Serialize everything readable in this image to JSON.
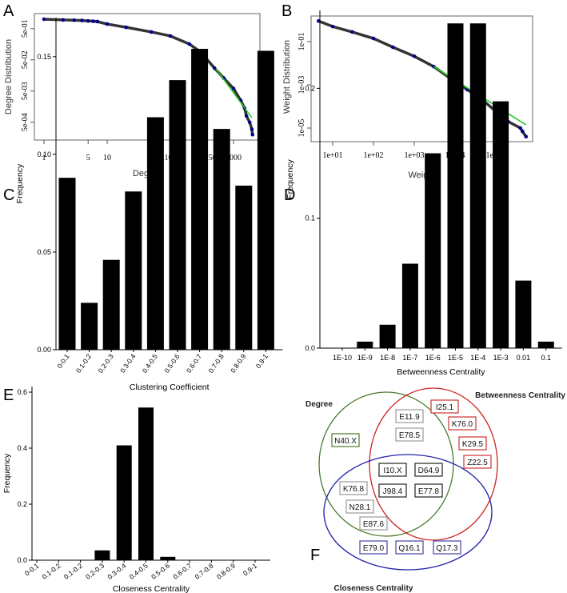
{
  "panels": {
    "A": "A",
    "B": "B",
    "C": "C",
    "D": "D",
    "E": "E",
    "F": "F"
  },
  "chart_data": [
    {
      "id": "A",
      "type": "scatter",
      "xscale": "log",
      "yscale": "log",
      "xlabel": "Degree",
      "ylabel": "Degree Distribution",
      "xticks": [
        1,
        5,
        10,
        50,
        100,
        500,
        1000
      ],
      "xtick_labels": [
        "1",
        "5",
        "10",
        "50",
        "100",
        "500",
        "1000"
      ],
      "yticks": [
        0.5,
        0.05,
        0.005,
        0.0005
      ],
      "ytick_labels": [
        "5e-01",
        "5e-02",
        "5e-03",
        "5e-04"
      ],
      "points": [
        [
          1,
          1.0
        ],
        [
          2,
          0.95
        ],
        [
          3,
          0.93
        ],
        [
          4,
          0.91
        ],
        [
          5,
          0.88
        ],
        [
          6,
          0.86
        ],
        [
          7,
          0.84
        ],
        [
          10,
          0.7
        ],
        [
          20,
          0.55
        ],
        [
          50,
          0.39
        ],
        [
          100,
          0.29
        ],
        [
          200,
          0.16
        ],
        [
          300,
          0.09
        ],
        [
          500,
          0.027
        ],
        [
          700,
          0.013
        ],
        [
          1000,
          0.006
        ],
        [
          1300,
          0.0025
        ],
        [
          1500,
          0.0014
        ],
        [
          1600,
          0.0008
        ],
        [
          1800,
          0.0005
        ],
        [
          1950,
          0.0003
        ],
        [
          2000,
          0.0002
        ]
      ],
      "fit": [
        [
          525,
          0.026
        ],
        [
          1950,
          0.0007
        ]
      ],
      "point_color": "#00008b",
      "fit_color": "#22cc22"
    },
    {
      "id": "B",
      "type": "scatter",
      "xscale": "log",
      "yscale": "log",
      "xlabel": "Weight",
      "ylabel": "Weight Distribution",
      "xticks": [
        10,
        100,
        1000,
        10000,
        100000
      ],
      "xtick_labels": [
        "1e+01",
        "1e+02",
        "1e+03",
        "1e+04",
        "1e+05"
      ],
      "yticks": [
        0.1,
        0.001,
        1e-05
      ],
      "ytick_labels": [
        "1e-01",
        "1e-03",
        "1e-05"
      ],
      "points": [
        [
          4.5,
          0.9
        ],
        [
          10,
          0.5
        ],
        [
          30,
          0.28
        ],
        [
          100,
          0.14
        ],
        [
          300,
          0.055
        ],
        [
          1000,
          0.021
        ],
        [
          3000,
          0.007
        ],
        [
          10000,
          0.0014
        ],
        [
          20000,
          0.0006
        ],
        [
          50000,
          0.00018
        ],
        [
          100000,
          6e-05
        ],
        [
          150000,
          3.5e-05
        ],
        [
          200000,
          2e-05
        ],
        [
          400000,
          1e-05
        ],
        [
          450000,
          7e-06
        ],
        [
          550000,
          4e-06
        ]
      ],
      "fit": [
        [
          3000,
          0.007
        ],
        [
          550000,
          1.4e-05
        ]
      ],
      "point_color": "#00008b",
      "fit_color": "#22cc22"
    },
    {
      "id": "C",
      "type": "bar",
      "xlabel": "Clustering Coefficient",
      "ylabel": "Frequency",
      "categories": [
        "0-0.1",
        "0.1-0.2",
        "0.2-0.3",
        "0.3-0.4",
        "0.4-0.5",
        "0.5-0.6",
        "0.6-0.7",
        "0.7-0.8",
        "0.8-0.9",
        "0.9-1"
      ],
      "values": [
        0.088,
        0.024,
        0.046,
        0.081,
        0.119,
        0.138,
        0.154,
        0.113,
        0.084,
        0.153
      ],
      "yticks": [
        0,
        0.05,
        0.1,
        0.15
      ],
      "ytick_labels": [
        "0.00",
        "0.05",
        "0.10",
        "0.15"
      ],
      "ylim": [
        0,
        0.17
      ]
    },
    {
      "id": "D",
      "type": "bar",
      "xlabel": "Betweenness Centrality",
      "ylabel": "Frequency",
      "categories": [
        "1E-10",
        "1E-9",
        "1E-8",
        "1E-7",
        "1E-6",
        "1E-5",
        "1E-4",
        "1E-3",
        "0.01",
        "0.1"
      ],
      "values": [
        0,
        0.005,
        0.018,
        0.065,
        0.15,
        0.25,
        0.25,
        0.19,
        0.052,
        0.005
      ],
      "yticks": [
        0,
        0.1,
        0.2
      ],
      "ytick_labels": [
        "0.0",
        "0.1",
        "0.2"
      ],
      "ylim": [
        0,
        0.26
      ]
    },
    {
      "id": "E",
      "type": "bar",
      "xlabel": "Closeness Centrality",
      "ylabel": "Frequency",
      "categories": [
        "0-0.1",
        "0.1-0.2",
        "0.1-0.2",
        "0.2-0.3",
        "0.3-0.4",
        "0.4-0.5",
        "0.5-0.6",
        "0.6-0.7",
        "0.7-0.8",
        "0.8-0.9",
        "0.9-1"
      ],
      "values": [
        0,
        0,
        0,
        0.035,
        0.41,
        0.545,
        0.012,
        0,
        0,
        0,
        0
      ],
      "yticks": [
        0,
        0.2,
        0.4,
        0.6
      ],
      "ytick_labels": [
        "0.0",
        "0.2",
        "0.4",
        "0.6"
      ],
      "ylim": [
        0,
        0.62
      ]
    }
  ],
  "venn": {
    "sets": [
      {
        "label": "Degree",
        "color": "#4a7a2a"
      },
      {
        "label": "Betweenness Centrality",
        "color": "#cc2222"
      },
      {
        "label": "Closeness Centrality",
        "color": "#2222aa"
      }
    ],
    "items": [
      {
        "text": "I25.1",
        "color": "#cc3333"
      },
      {
        "text": "K76.0",
        "color": "#cc3333"
      },
      {
        "text": "K29.5",
        "color": "#cc3333"
      },
      {
        "text": "Z22.5",
        "color": "#cc3333"
      },
      {
        "text": "E11.9",
        "color": "#999999"
      },
      {
        "text": "E78.5",
        "color": "#999999"
      },
      {
        "text": "N40.X",
        "color": "#4a7a2a"
      },
      {
        "text": "I10.X",
        "color": "#222222"
      },
      {
        "text": "D64.9",
        "color": "#222222"
      },
      {
        "text": "J98.4",
        "color": "#222222"
      },
      {
        "text": "E77.8",
        "color": "#222222"
      },
      {
        "text": "K76.8",
        "color": "#999999"
      },
      {
        "text": "N28.1",
        "color": "#999999"
      },
      {
        "text": "E87.6",
        "color": "#999999"
      },
      {
        "text": "E79.0",
        "color": "#4444aa"
      },
      {
        "text": "Q16.1",
        "color": "#4444aa"
      },
      {
        "text": "Q17.3",
        "color": "#4444aa"
      }
    ]
  }
}
